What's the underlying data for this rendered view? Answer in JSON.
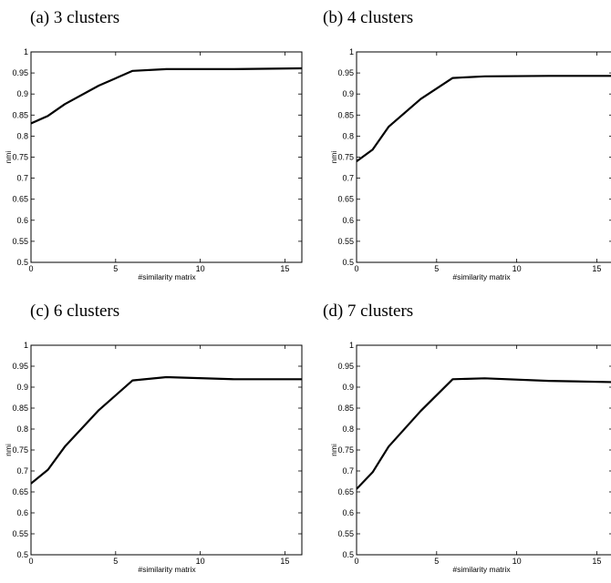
{
  "chart_data": [
    {
      "type": "line",
      "title": "(a) 3 clusters",
      "xlabel": "#similarity matrix",
      "ylabel": "nmi",
      "xlim": [
        0,
        16
      ],
      "ylim": [
        0.5,
        1
      ],
      "xticks": [
        "0",
        "5",
        "10",
        "15"
      ],
      "yticks": [
        "0.5",
        "0.55",
        "0.6",
        "0.65",
        "0.7",
        "0.75",
        "0.8",
        "0.85",
        "0.9",
        "0.95",
        "1"
      ],
      "grid": false,
      "series": [
        {
          "x": [
            0,
            1,
            2,
            4,
            6,
            8,
            12,
            16
          ],
          "y": [
            0.83,
            0.848,
            0.876,
            0.92,
            0.955,
            0.959,
            0.959,
            0.961
          ]
        }
      ]
    },
    {
      "type": "line",
      "title": "(b) 4 clusters",
      "xlabel": "#similarity matrix",
      "ylabel": "nmi",
      "xlim": [
        0,
        16
      ],
      "ylim": [
        0.5,
        1
      ],
      "xticks": [
        "0",
        "5",
        "10",
        "15"
      ],
      "yticks": [
        "0.5",
        "0.55",
        "0.6",
        "0.65",
        "0.7",
        "0.75",
        "0.8",
        "0.85",
        "0.9",
        "0.95",
        "1"
      ],
      "grid": false,
      "series": [
        {
          "x": [
            0,
            1,
            2,
            4,
            6,
            8,
            12,
            16
          ],
          "y": [
            0.74,
            0.768,
            0.822,
            0.888,
            0.938,
            0.942,
            0.943,
            0.943
          ]
        }
      ]
    },
    {
      "type": "line",
      "title": "(c) 6 clusters",
      "xlabel": "#similarity matrix",
      "ylabel": "nmi",
      "xlim": [
        0,
        16
      ],
      "ylim": [
        0.5,
        1
      ],
      "xticks": [
        "0",
        "5",
        "10",
        "15"
      ],
      "yticks": [
        "0.5",
        "0.55",
        "0.6",
        "0.65",
        "0.7",
        "0.75",
        "0.8",
        "0.85",
        "0.9",
        "0.95",
        "1"
      ],
      "grid": false,
      "series": [
        {
          "x": [
            0,
            1,
            2,
            4,
            6,
            8,
            12,
            16
          ],
          "y": [
            0.67,
            0.703,
            0.758,
            0.845,
            0.916,
            0.924,
            0.919,
            0.919
          ]
        }
      ]
    },
    {
      "type": "line",
      "title": "(d) 7 clusters",
      "xlabel": "#similarity matrix",
      "ylabel": "nmi",
      "xlim": [
        0,
        16
      ],
      "ylim": [
        0.5,
        1
      ],
      "xticks": [
        "0",
        "5",
        "10",
        "15"
      ],
      "yticks": [
        "0.5",
        "0.55",
        "0.6",
        "0.65",
        "0.7",
        "0.75",
        "0.8",
        "0.85",
        "0.9",
        "0.95",
        "1"
      ],
      "grid": false,
      "series": [
        {
          "x": [
            0,
            1,
            2,
            4,
            6,
            8,
            12,
            16
          ],
          "y": [
            0.657,
            0.697,
            0.758,
            0.843,
            0.919,
            0.921,
            0.915,
            0.912
          ]
        }
      ]
    }
  ]
}
